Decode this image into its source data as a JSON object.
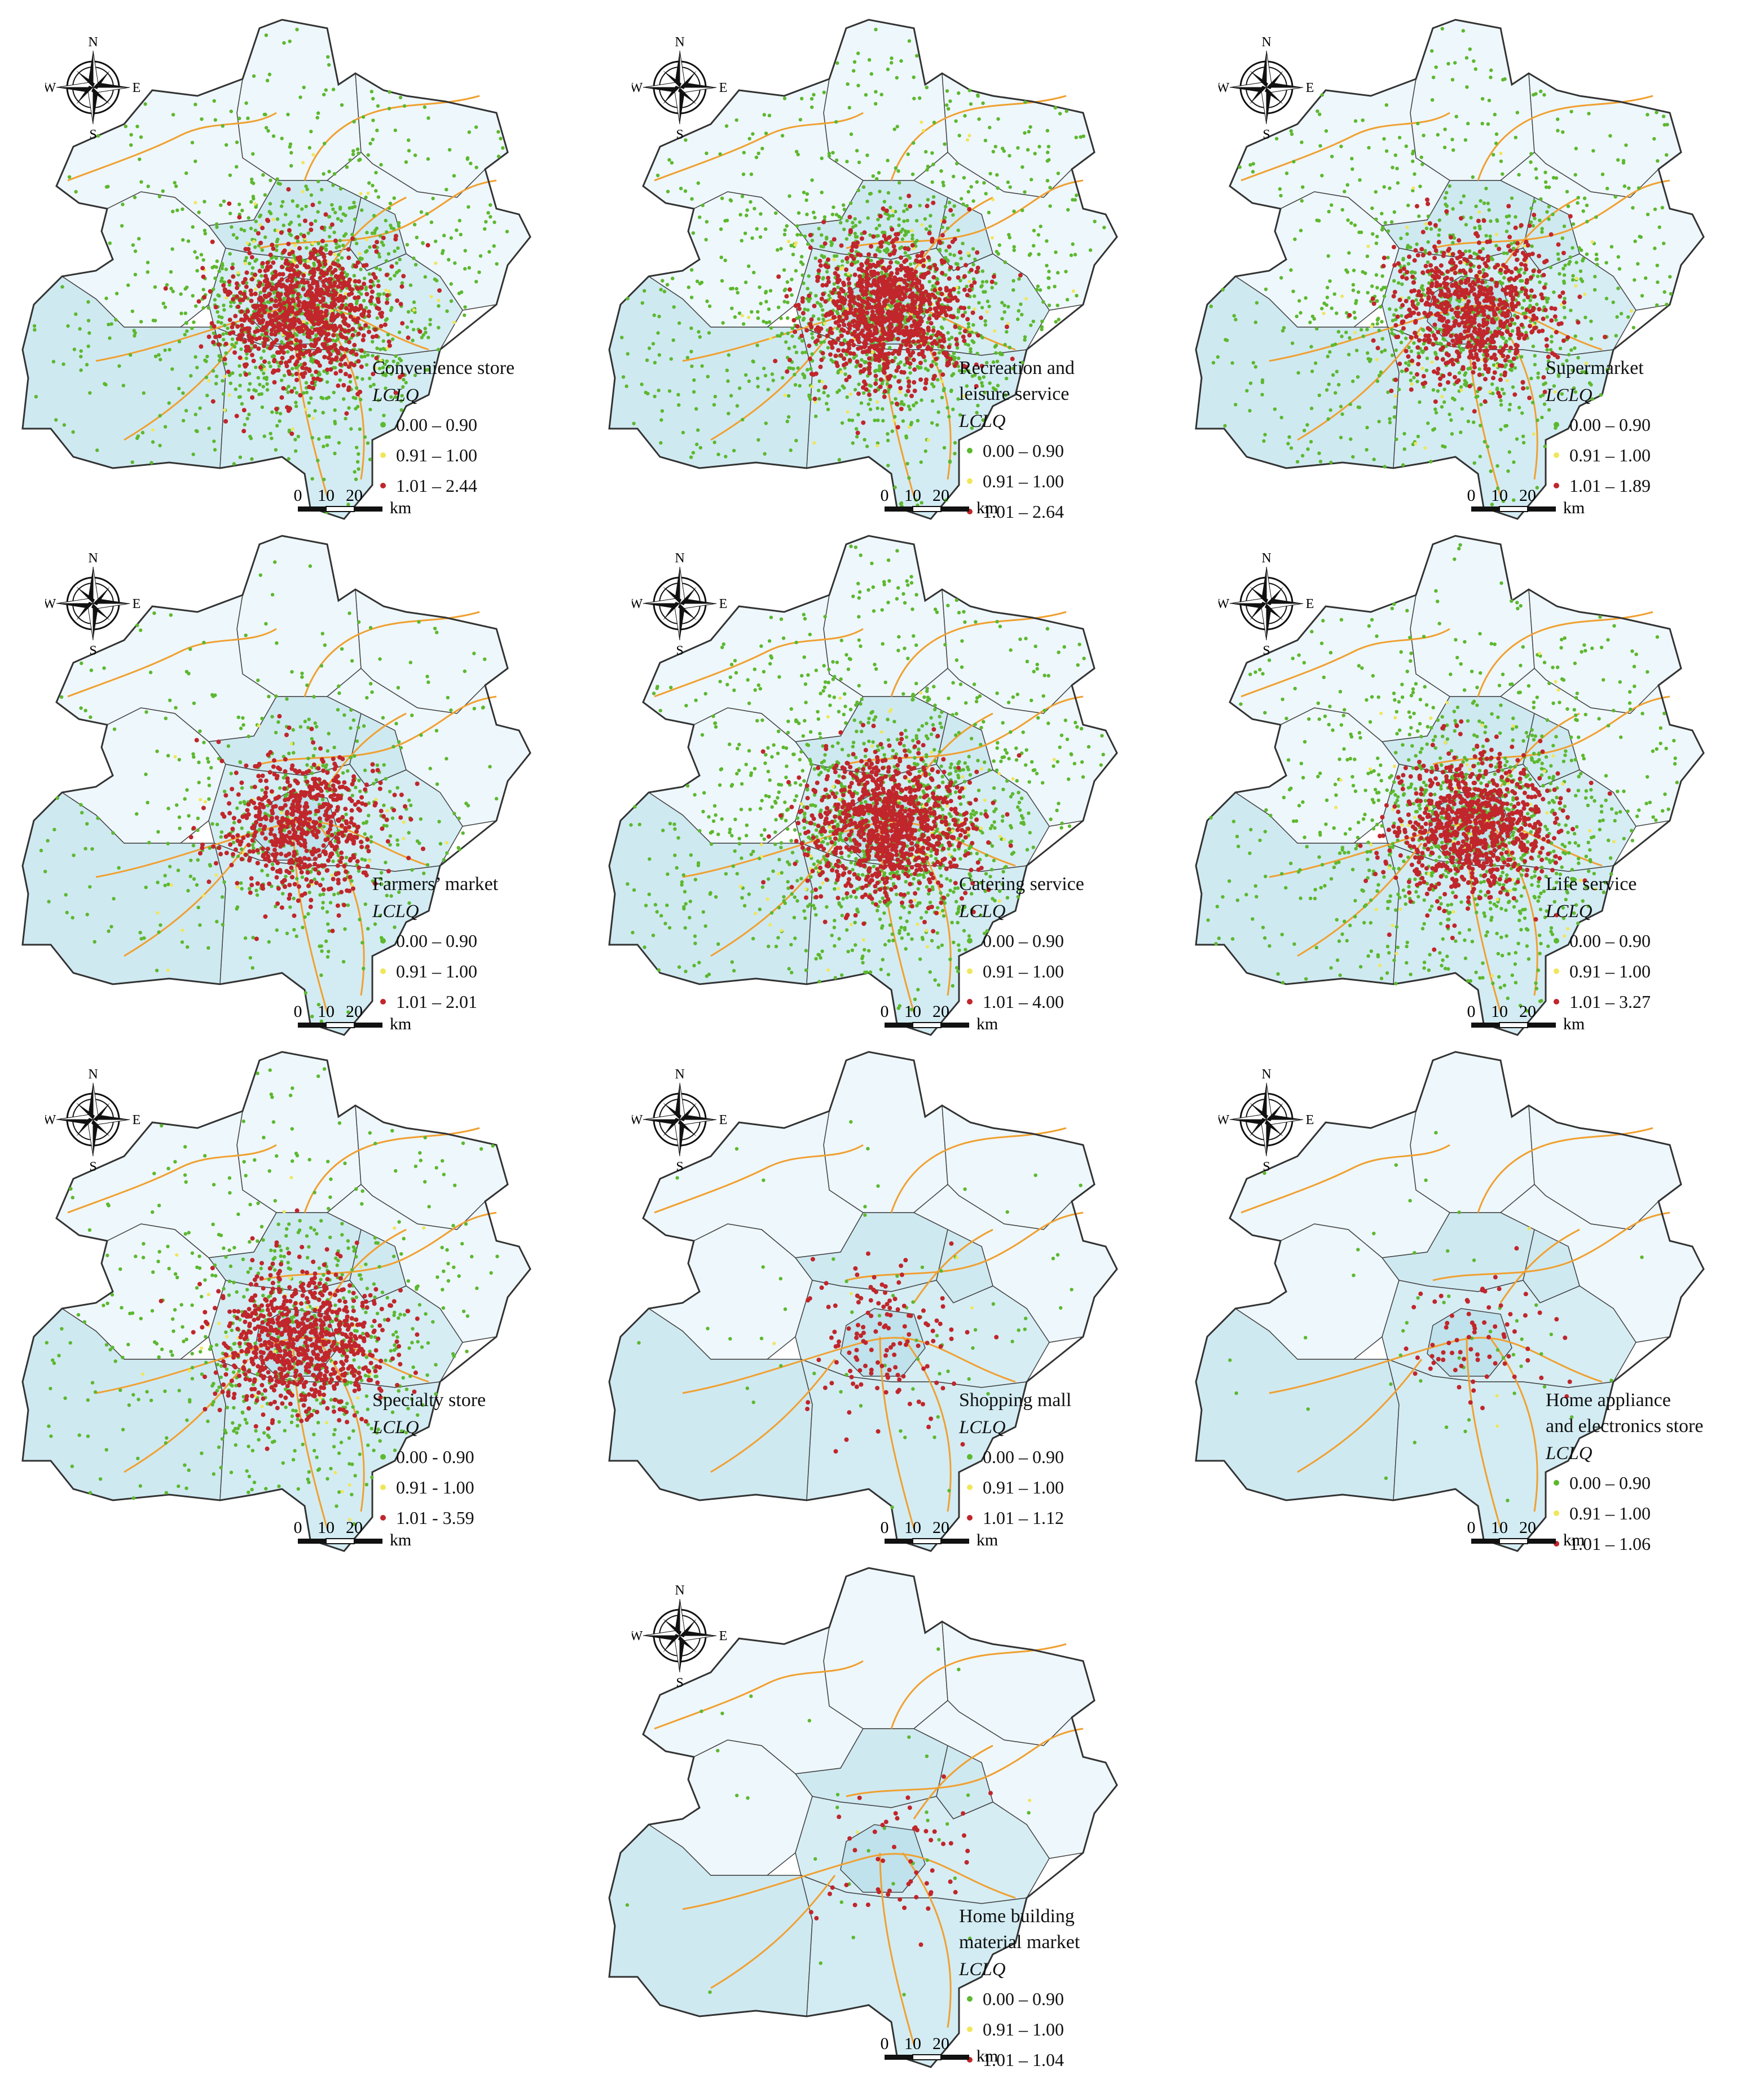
{
  "class_colors": [
    "#5cb82e",
    "#f0e65a",
    "#c0262b"
  ],
  "compass_letters": {
    "n": "N",
    "s": "S",
    "e": "E",
    "w": "W"
  },
  "scale_bar": {
    "ticks": [
      "0",
      "10",
      "20"
    ],
    "unit": "km"
  },
  "legend_title": "LCLQ",
  "panels": [
    {
      "title": "Convenience store",
      "classes": [
        "0.00 – 0.90",
        "0.91 – 1.00",
        "1.01 – 2.44"
      ],
      "density": {
        "green": 1.0,
        "red": 1.0
      }
    },
    {
      "title": "Recreation and\nleisure service",
      "classes": [
        "0.00 – 0.90",
        "0.91 – 1.00",
        "1.01 – 2.64"
      ],
      "density": {
        "green": 1.1,
        "red": 1.15
      }
    },
    {
      "title": "Supermarket",
      "classes": [
        "0.00 – 0.90",
        "0.91 – 1.00",
        "1.01 – 1.89"
      ],
      "density": {
        "green": 0.85,
        "red": 0.8
      }
    },
    {
      "title": "Farmers’ market",
      "classes": [
        "0.00 – 0.90",
        "0.91 – 1.00",
        "1.01 – 2.01"
      ],
      "density": {
        "green": 0.45,
        "red": 0.7
      }
    },
    {
      "title": "Catering service",
      "classes": [
        "0.00 – 0.90",
        "0.91 – 1.00",
        "1.01 – 4.00"
      ],
      "density": {
        "green": 1.1,
        "red": 1.1
      }
    },
    {
      "title": "Life service",
      "classes": [
        "0.00 – 0.90",
        "0.91 – 1.00",
        "1.01 – 3.27"
      ],
      "density": {
        "green": 0.95,
        "red": 0.95
      }
    },
    {
      "title": "Specialty store",
      "classes": [
        "0.00 - 0.90",
        "0.91 - 1.00",
        "1.01 - 3.59"
      ],
      "density": {
        "green": 0.6,
        "red": 0.9
      }
    },
    {
      "title": "Shopping mall",
      "classes": [
        "0.00 – 0.90",
        "0.91 – 1.00",
        "1.01 – 1.12"
      ],
      "density": {
        "green": 0.06,
        "red": 0.15
      }
    },
    {
      "title": "Home appliance\nand electronics store",
      "classes": [
        "0.00 – 0.90",
        "0.91 – 1.00",
        "1.01 – 1.06"
      ],
      "density": {
        "green": 0.04,
        "red": 0.08
      }
    },
    {
      "title": "Home building\nmaterial market",
      "classes": [
        "0.00 – 0.90",
        "0.91 – 1.00",
        "1.01 – 1.04"
      ],
      "density": {
        "green": 0.03,
        "red": 0.06
      }
    }
  ]
}
